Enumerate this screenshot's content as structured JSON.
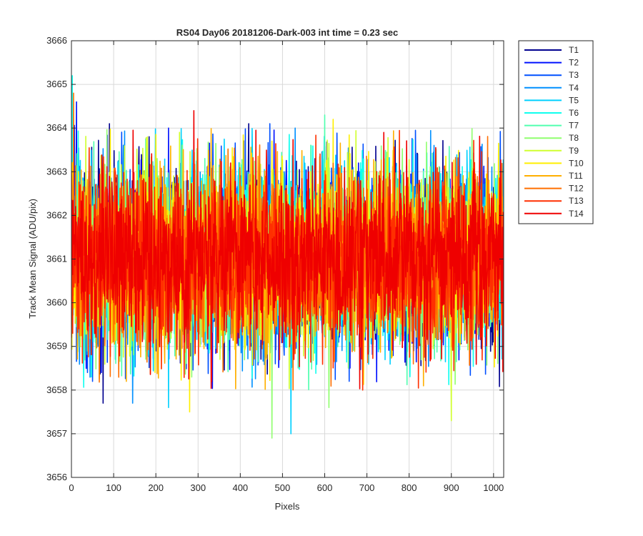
{
  "chart_data": {
    "type": "line",
    "title": "RS04 Day06 20181206-Dark-003 int time = 0.23 sec",
    "xlabel": "Pixels",
    "ylabel": "Track Mean Signal (ADU/pix)",
    "xlim": [
      0,
      1024
    ],
    "ylim": [
      3656,
      3666
    ],
    "x_ticks": [
      0,
      100,
      200,
      300,
      400,
      500,
      600,
      700,
      800,
      900,
      1000
    ],
    "y_ticks": [
      3656,
      3657,
      3658,
      3659,
      3660,
      3661,
      3662,
      3663,
      3664,
      3665,
      3666
    ],
    "grid": true,
    "legend_position": "outside-top-right",
    "n_points_per_series": 1024,
    "series_mean": 3661.0,
    "series_stddev": 1.0,
    "series": [
      {
        "name": "T1",
        "color": "#00008F",
        "peaks": [
          {
            "x": 90,
            "y": 3664.1
          },
          {
            "x": 420,
            "y": 3664.1
          },
          {
            "x": 75,
            "y": 3657.7
          }
        ]
      },
      {
        "name": "T2",
        "color": "#0010FF",
        "peaks": [
          {
            "x": 12,
            "y": 3664.6
          },
          {
            "x": 230,
            "y": 3664.0
          },
          {
            "x": 680,
            "y": 3663.2
          }
        ]
      },
      {
        "name": "T3",
        "color": "#0050FF",
        "peaks": [
          {
            "x": 470,
            "y": 3664.1
          },
          {
            "x": 50,
            "y": 3658.2
          }
        ]
      },
      {
        "name": "T4",
        "color": "#0090FF",
        "peaks": [
          {
            "x": 530,
            "y": 3664.0
          },
          {
            "x": 145,
            "y": 3657.7
          }
        ]
      },
      {
        "name": "T5",
        "color": "#00D0FF",
        "peaks": [
          {
            "x": 230,
            "y": 3657.6
          },
          {
            "x": 520,
            "y": 3657.0
          }
        ]
      },
      {
        "name": "T6",
        "color": "#10FFEF",
        "peaks": [
          {
            "x": 2,
            "y": 3665.2
          }
        ]
      },
      {
        "name": "T7",
        "color": "#50FFAF",
        "peaks": [
          {
            "x": 600,
            "y": 3664.3
          }
        ]
      },
      {
        "name": "T8",
        "color": "#90FF6F",
        "peaks": [
          {
            "x": 475,
            "y": 3656.9
          },
          {
            "x": 610,
            "y": 3657.6
          }
        ]
      },
      {
        "name": "T9",
        "color": "#D0FF2F",
        "peaks": [
          {
            "x": 180,
            "y": 3663.8
          },
          {
            "x": 900,
            "y": 3657.3
          }
        ]
      },
      {
        "name": "T10",
        "color": "#FFEF00",
        "peaks": [
          {
            "x": 620,
            "y": 3664.2
          },
          {
            "x": 280,
            "y": 3657.5
          }
        ]
      },
      {
        "name": "T11",
        "color": "#FFAF00",
        "peaks": [
          {
            "x": 130,
            "y": 3658.2
          }
        ]
      },
      {
        "name": "T12",
        "color": "#FF6F00",
        "peaks": [
          {
            "x": 5,
            "y": 3664.8
          }
        ]
      },
      {
        "name": "T13",
        "color": "#FF2F00",
        "peaks": [
          {
            "x": 690,
            "y": 3658.0
          }
        ]
      },
      {
        "name": "T14",
        "color": "#EF0000",
        "peaks": [
          {
            "x": 290,
            "y": 3664.4
          },
          {
            "x": 740,
            "y": 3663.9
          }
        ]
      }
    ]
  }
}
